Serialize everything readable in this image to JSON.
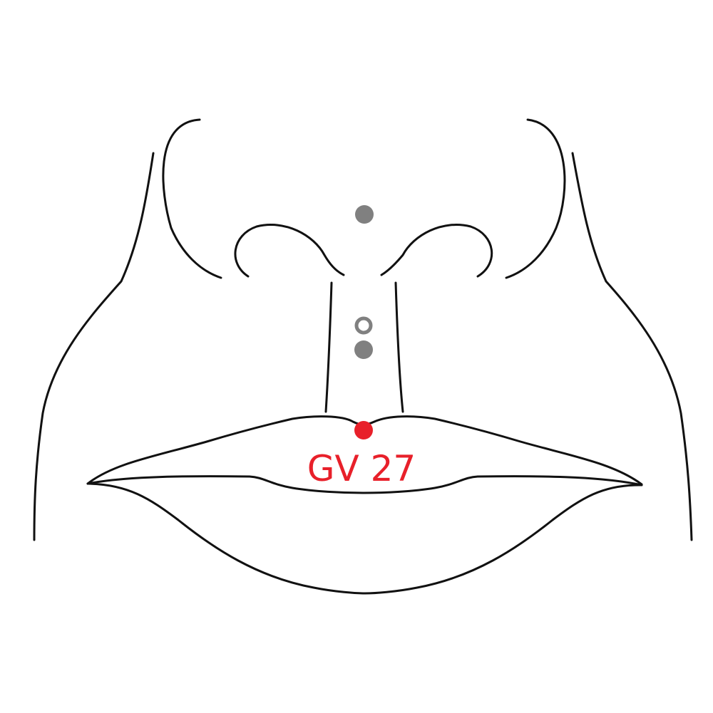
{
  "diagram": {
    "colors": {
      "line": "#111111",
      "active_point": "#e8202a",
      "other_point": "#808080",
      "background": "#ffffff"
    },
    "highlighted_point": {
      "label": "GV 27"
    }
  }
}
